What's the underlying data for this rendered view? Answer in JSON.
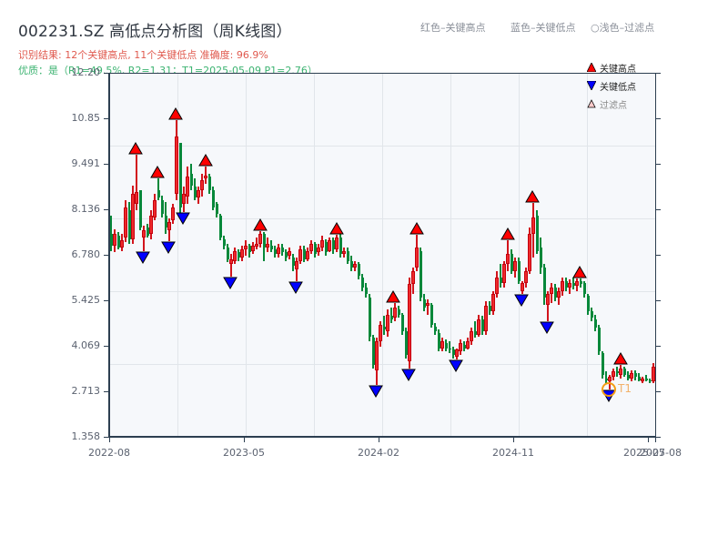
{
  "header": {
    "title": "002231.SZ 高低点分析图（周K线图）",
    "result_line": "识别结果: 12个关键高点, 11个关键低点   准确度: 96.9%",
    "quality_line": "优质：是（R1=49.5%, R2=1.31；T1=2025-05-09 P1=2.76）"
  },
  "top_legend": {
    "red": "红色–关键高点",
    "blue": "蓝色–关键低点",
    "light": "○浅色–过滤点"
  },
  "legend": {
    "items": [
      {
        "label": "关键高点",
        "marker": "triangle-up",
        "color": "#ff0000"
      },
      {
        "label": "关键低点",
        "marker": "triangle-down",
        "color": "#0000ff"
      },
      {
        "label": "过滤点",
        "marker": "triangle-up",
        "color": "#ffcccc"
      }
    ]
  },
  "colors": {
    "up": "#d2141c",
    "down": "#06883a",
    "high_marker": "#ff0000",
    "low_marker": "#0000ff",
    "t1_ring": "#f39c12",
    "plot_bg": "#f6f8fb",
    "grid": "#e1e5ea",
    "axis": "#2c3e50"
  },
  "t1_label": "T1",
  "chart_data": {
    "type": "candlestick",
    "title": "002231.SZ 高低点分析图（周K线图）",
    "xlabel": "",
    "ylabel": "",
    "ylim": [
      1.358,
      12.2
    ],
    "y_ticks": [
      "12.20",
      "10.85",
      "9.491",
      "8.136",
      "6.780",
      "5.425",
      "4.069",
      "2.713",
      "1.358"
    ],
    "x_ticks": [
      {
        "label": "2022-08",
        "x": 0
      },
      {
        "label": "2023-05",
        "x": 148
      },
      {
        "label": "2024-02",
        "x": 296
      },
      {
        "label": "2024-11",
        "x": 444
      },
      {
        "label": "2025-07",
        "x": 592
      },
      {
        "label": "2025-08",
        "x": 600
      }
    ],
    "grid": true,
    "legend_position": "upper right",
    "key_highs": [
      {
        "x": 28,
        "price": 9.75
      },
      {
        "x": 52,
        "price": 9.05
      },
      {
        "x": 72,
        "price": 10.78
      },
      {
        "x": 105,
        "price": 9.4
      },
      {
        "x": 165,
        "price": 7.48
      },
      {
        "x": 249,
        "price": 7.38
      },
      {
        "x": 311,
        "price": 5.33
      },
      {
        "x": 337,
        "price": 7.38
      },
      {
        "x": 437,
        "price": 7.21
      },
      {
        "x": 464,
        "price": 8.32
      },
      {
        "x": 516,
        "price": 6.07
      },
      {
        "x": 561,
        "price": 3.51
      }
    ],
    "key_lows": [
      {
        "x": 36,
        "price": 6.88
      },
      {
        "x": 64,
        "price": 7.18
      },
      {
        "x": 80,
        "price": 8.05
      },
      {
        "x": 132,
        "price": 6.12
      },
      {
        "x": 204,
        "price": 6.0
      },
      {
        "x": 292,
        "price": 2.91
      },
      {
        "x": 328,
        "price": 3.39
      },
      {
        "x": 380,
        "price": 3.66
      },
      {
        "x": 452,
        "price": 5.61
      },
      {
        "x": 480,
        "price": 4.8
      },
      {
        "x": 548,
        "price": 2.76
      }
    ],
    "t1": {
      "x": 548,
      "price": 2.76,
      "label": "T1"
    },
    "candles": [
      [
        0,
        7.4,
        7.95,
        6.9,
        7.05
      ],
      [
        4,
        7.05,
        7.55,
        6.85,
        7.4
      ],
      [
        8,
        7.35,
        7.45,
        6.95,
        7.0
      ],
      [
        12,
        7.0,
        7.4,
        6.9,
        7.2
      ],
      [
        16,
        7.3,
        8.4,
        7.15,
        8.2
      ],
      [
        20,
        8.1,
        8.35,
        7.1,
        7.25
      ],
      [
        24,
        7.25,
        8.85,
        7.1,
        8.6
      ],
      [
        28,
        8.3,
        9.75,
        8.1,
        8.65
      ],
      [
        32,
        8.7,
        8.7,
        7.5,
        7.6
      ],
      [
        36,
        7.3,
        7.65,
        6.88,
        7.5
      ],
      [
        40,
        7.6,
        7.7,
        7.3,
        7.35
      ],
      [
        44,
        7.4,
        8.1,
        7.25,
        7.95
      ],
      [
        48,
        7.9,
        8.6,
        7.8,
        8.4
      ],
      [
        52,
        8.7,
        9.05,
        8.4,
        8.5
      ],
      [
        56,
        8.4,
        8.55,
        7.9,
        8.0
      ],
      [
        60,
        7.95,
        8.35,
        7.4,
        7.6
      ],
      [
        64,
        7.5,
        7.85,
        7.18,
        7.75
      ],
      [
        68,
        7.8,
        8.3,
        7.7,
        8.2
      ],
      [
        72,
        8.6,
        10.78,
        8.4,
        10.3
      ],
      [
        76,
        10.1,
        10.1,
        7.95,
        8.2
      ],
      [
        80,
        8.3,
        8.8,
        8.05,
        8.6
      ],
      [
        84,
        8.5,
        9.4,
        8.3,
        9.1
      ],
      [
        88,
        9.2,
        9.5,
        8.7,
        8.85
      ],
      [
        92,
        8.8,
        9.05,
        8.4,
        8.5
      ],
      [
        96,
        8.5,
        8.8,
        8.3,
        8.7
      ],
      [
        100,
        8.7,
        9.2,
        8.5,
        9.0
      ],
      [
        104,
        9.05,
        9.4,
        8.9,
        9.15
      ],
      [
        108,
        9.1,
        9.2,
        8.6,
        8.7
      ],
      [
        112,
        8.7,
        8.8,
        8.1,
        8.2
      ],
      [
        116,
        8.3,
        8.35,
        7.9,
        8.0
      ],
      [
        120,
        7.95,
        8.0,
        7.2,
        7.3
      ],
      [
        124,
        7.25,
        7.35,
        6.95,
        7.05
      ],
      [
        128,
        7.0,
        7.1,
        6.55,
        6.65
      ],
      [
        132,
        6.5,
        6.8,
        6.12,
        6.65
      ],
      [
        136,
        6.6,
        7.0,
        6.5,
        6.9
      ],
      [
        140,
        6.85,
        6.95,
        6.6,
        6.7
      ],
      [
        144,
        6.7,
        7.05,
        6.6,
        6.95
      ],
      [
        148,
        6.95,
        7.2,
        6.75,
        7.05
      ],
      [
        152,
        7.05,
        7.1,
        6.7,
        6.85
      ],
      [
        156,
        6.9,
        7.15,
        6.8,
        7.05
      ],
      [
        160,
        7.05,
        7.3,
        6.95,
        7.1
      ],
      [
        164,
        7.1,
        7.48,
        7.0,
        7.4
      ],
      [
        168,
        7.4,
        7.45,
        6.6,
        7.0
      ],
      [
        172,
        7.0,
        7.3,
        6.85,
        7.1
      ],
      [
        176,
        7.05,
        7.2,
        6.85,
        6.95
      ],
      [
        180,
        6.95,
        7.05,
        6.7,
        6.8
      ],
      [
        184,
        6.8,
        7.1,
        6.7,
        7.0
      ],
      [
        188,
        7.0,
        7.1,
        6.75,
        6.85
      ],
      [
        192,
        6.85,
        6.95,
        6.6,
        6.7
      ],
      [
        196,
        6.75,
        7.0,
        6.65,
        6.9
      ],
      [
        200,
        6.7,
        6.8,
        6.3,
        6.45
      ],
      [
        204,
        6.35,
        6.7,
        6.0,
        6.6
      ],
      [
        208,
        6.6,
        7.05,
        6.5,
        6.95
      ],
      [
        212,
        6.95,
        7.05,
        6.55,
        6.65
      ],
      [
        216,
        6.65,
        7.0,
        6.6,
        6.9
      ],
      [
        220,
        6.9,
        7.2,
        6.8,
        7.1
      ],
      [
        224,
        7.1,
        7.15,
        6.7,
        6.8
      ],
      [
        228,
        6.85,
        7.1,
        6.75,
        7.0
      ],
      [
        232,
        7.0,
        7.35,
        6.9,
        7.2
      ],
      [
        236,
        7.15,
        7.25,
        6.75,
        6.85
      ],
      [
        240,
        6.9,
        7.3,
        6.85,
        7.2
      ],
      [
        244,
        7.2,
        7.3,
        6.8,
        6.95
      ],
      [
        248,
        6.95,
        7.38,
        6.85,
        7.3
      ],
      [
        252,
        7.3,
        7.4,
        6.7,
        6.8
      ],
      [
        256,
        6.8,
        7.0,
        6.7,
        6.9
      ],
      [
        260,
        6.9,
        7.0,
        6.5,
        6.6
      ],
      [
        264,
        6.6,
        6.75,
        6.3,
        6.4
      ],
      [
        268,
        6.4,
        6.6,
        6.3,
        6.5
      ],
      [
        272,
        6.5,
        6.55,
        6.05,
        6.15
      ],
      [
        276,
        6.1,
        6.2,
        5.7,
        5.8
      ],
      [
        280,
        5.8,
        5.95,
        5.5,
        5.6
      ],
      [
        284,
        5.5,
        5.6,
        4.2,
        4.35
      ],
      [
        288,
        4.3,
        4.4,
        3.4,
        3.5
      ],
      [
        292,
        3.35,
        4.3,
        2.91,
        4.2
      ],
      [
        296,
        4.2,
        4.8,
        4.05,
        4.7
      ],
      [
        300,
        4.65,
        4.95,
        4.4,
        4.55
      ],
      [
        304,
        4.5,
        5.15,
        4.35,
        5.0
      ],
      [
        308,
        4.95,
        5.2,
        4.75,
        4.85
      ],
      [
        312,
        4.9,
        5.33,
        4.8,
        5.2
      ],
      [
        316,
        5.15,
        5.25,
        4.9,
        5.0
      ],
      [
        320,
        5.0,
        5.05,
        4.4,
        4.5
      ],
      [
        324,
        4.5,
        4.6,
        3.7,
        3.8
      ],
      [
        328,
        3.6,
        6.1,
        3.39,
        5.9
      ],
      [
        332,
        5.9,
        6.4,
        5.6,
        6.3
      ],
      [
        336,
        6.4,
        7.38,
        6.3,
        7.0
      ],
      [
        340,
        6.9,
        7.0,
        5.4,
        5.5
      ],
      [
        344,
        5.45,
        5.6,
        5.1,
        5.2
      ],
      [
        348,
        5.25,
        5.45,
        5.0,
        5.35
      ],
      [
        352,
        5.3,
        5.35,
        4.6,
        4.7
      ],
      [
        356,
        4.65,
        4.75,
        4.4,
        4.5
      ],
      [
        360,
        4.45,
        4.55,
        3.9,
        4.0
      ],
      [
        364,
        4.0,
        4.3,
        3.9,
        4.2
      ],
      [
        368,
        4.15,
        4.25,
        3.9,
        4.0
      ],
      [
        372,
        4.0,
        4.2,
        3.85,
        3.95
      ],
      [
        376,
        3.95,
        4.05,
        3.7,
        3.8
      ],
      [
        380,
        3.75,
        4.0,
        3.66,
        3.95
      ],
      [
        384,
        3.9,
        4.25,
        3.8,
        4.15
      ],
      [
        388,
        4.1,
        4.2,
        3.9,
        4.0
      ],
      [
        392,
        4.0,
        4.3,
        3.95,
        4.2
      ],
      [
        396,
        4.2,
        4.6,
        4.1,
        4.5
      ],
      [
        400,
        4.5,
        4.8,
        4.3,
        4.4
      ],
      [
        404,
        4.4,
        5.0,
        4.35,
        4.85
      ],
      [
        408,
        4.85,
        4.95,
        4.4,
        4.5
      ],
      [
        412,
        4.5,
        5.4,
        4.4,
        5.25
      ],
      [
        416,
        5.25,
        5.4,
        5.0,
        5.1
      ],
      [
        420,
        5.1,
        5.7,
        5.0,
        5.6
      ],
      [
        424,
        5.6,
        6.3,
        5.5,
        6.1
      ],
      [
        428,
        6.1,
        6.5,
        5.8,
        5.95
      ],
      [
        432,
        5.95,
        6.6,
        5.8,
        6.5
      ],
      [
        436,
        6.5,
        7.21,
        6.3,
        6.8
      ],
      [
        440,
        6.8,
        6.95,
        6.2,
        6.3
      ],
      [
        444,
        6.3,
        6.7,
        6.1,
        6.6
      ],
      [
        448,
        6.6,
        6.7,
        5.9,
        6.0
      ],
      [
        452,
        5.7,
        6.0,
        5.61,
        5.95
      ],
      [
        456,
        5.95,
        6.4,
        5.8,
        6.3
      ],
      [
        460,
        6.3,
        7.6,
        6.2,
        7.4
      ],
      [
        464,
        7.4,
        8.32,
        6.7,
        7.9
      ],
      [
        468,
        7.95,
        8.1,
        6.8,
        6.9
      ],
      [
        472,
        7.0,
        7.3,
        6.2,
        6.4
      ],
      [
        476,
        6.4,
        6.5,
        5.3,
        5.5
      ],
      [
        480,
        5.3,
        5.7,
        4.8,
        5.6
      ],
      [
        484,
        5.6,
        5.95,
        5.35,
        5.8
      ],
      [
        488,
        5.8,
        5.9,
        5.4,
        5.5
      ],
      [
        492,
        5.5,
        5.8,
        5.3,
        5.7
      ],
      [
        496,
        5.7,
        6.1,
        5.55,
        6.0
      ],
      [
        500,
        6.0,
        6.1,
        5.7,
        5.8
      ],
      [
        504,
        5.8,
        6.05,
        5.6,
        5.95
      ],
      [
        508,
        5.95,
        6.1,
        5.75,
        5.85
      ],
      [
        512,
        5.85,
        6.07,
        5.7,
        6.0
      ],
      [
        516,
        6.0,
        6.07,
        5.8,
        5.9
      ],
      [
        520,
        5.95,
        6.0,
        5.5,
        5.6
      ],
      [
        524,
        5.55,
        5.6,
        5.0,
        5.1
      ],
      [
        528,
        5.1,
        5.2,
        4.8,
        4.9
      ],
      [
        532,
        4.85,
        5.0,
        4.5,
        4.6
      ],
      [
        536,
        4.6,
        4.7,
        3.8,
        3.9
      ],
      [
        540,
        3.85,
        3.9,
        3.1,
        3.2
      ],
      [
        544,
        3.1,
        3.3,
        2.95,
        3.05
      ],
      [
        548,
        3.0,
        3.2,
        2.76,
        3.15
      ],
      [
        552,
        3.15,
        3.4,
        3.05,
        3.3
      ],
      [
        556,
        3.3,
        3.45,
        3.15,
        3.25
      ],
      [
        560,
        3.2,
        3.51,
        3.1,
        3.4
      ],
      [
        564,
        3.4,
        3.45,
        3.15,
        3.2
      ],
      [
        568,
        3.2,
        3.3,
        3.05,
        3.1
      ],
      [
        572,
        3.1,
        3.35,
        3.0,
        3.25
      ],
      [
        576,
        3.25,
        3.35,
        3.05,
        3.15
      ],
      [
        580,
        3.15,
        3.25,
        3.0,
        3.05
      ],
      [
        584,
        3.05,
        3.15,
        2.95,
        3.1
      ],
      [
        588,
        3.1,
        3.2,
        3.0,
        3.05
      ],
      [
        592,
        3.05,
        3.1,
        2.95,
        3.0
      ],
      [
        596,
        3.0,
        3.55,
        2.95,
        3.45
      ]
    ]
  }
}
